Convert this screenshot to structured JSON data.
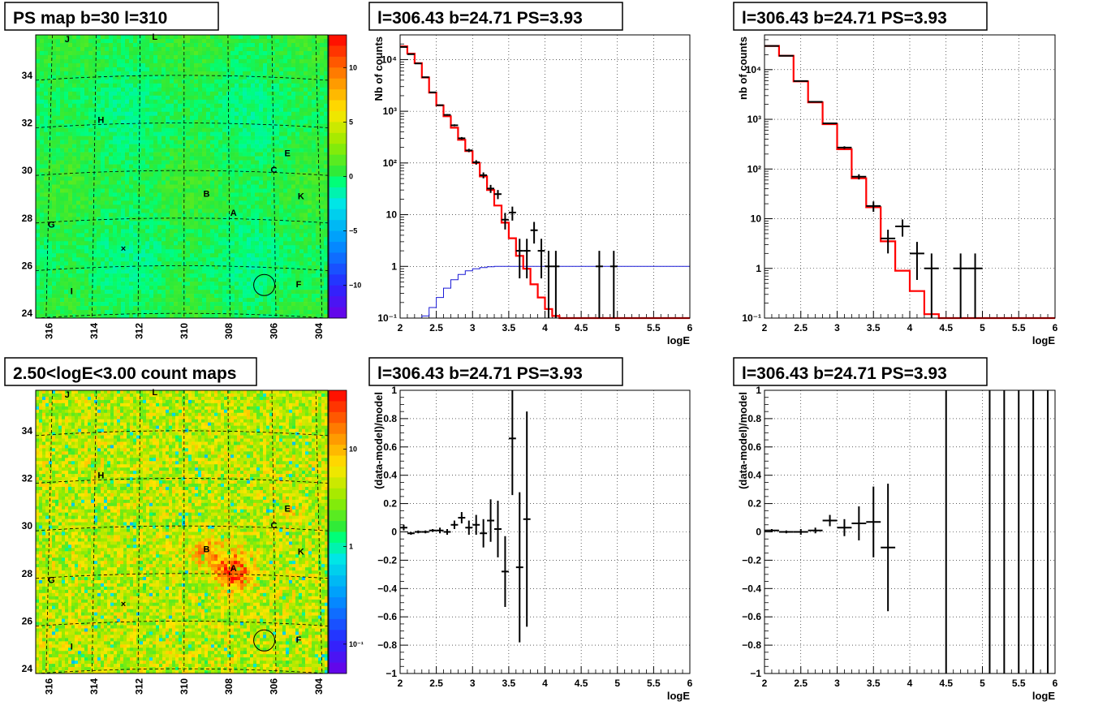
{
  "map_panels": [
    {
      "title": "PS map b=30 l=310",
      "palette": "ps",
      "colorbar_ticks": [
        "10",
        "5",
        "0",
        "−5",
        "−10"
      ],
      "colorbar_ticks_value": [
        10,
        5,
        0,
        -5,
        -10
      ],
      "colorbar_range": [
        -13,
        13
      ],
      "lat_ticks": [
        "34",
        "32",
        "30",
        "28",
        "26",
        "24"
      ],
      "lon_ticks": [
        "316",
        "314",
        "312",
        "310",
        "308",
        "306",
        "304"
      ]
    },
    {
      "title": "2.50<logE<3.00 count maps",
      "palette": "counts",
      "colorbar_ticks": [
        "10",
        "1",
        "10⁻¹"
      ],
      "colorbar_ticks_value": [
        10,
        1,
        0.1
      ],
      "colorbar_range": [
        0.05,
        40
      ],
      "lat_ticks": [
        "34",
        "32",
        "30",
        "28",
        "26",
        "24"
      ],
      "lon_ticks": [
        "316",
        "314",
        "312",
        "310",
        "308",
        "306",
        "304"
      ]
    }
  ],
  "sources": [
    {
      "label": "J",
      "l": 315.2,
      "b": 35.4
    },
    {
      "label": "L",
      "l": 311.3,
      "b": 35.5
    },
    {
      "label": "H",
      "l": 313.7,
      "b": 32.0
    },
    {
      "label": "E",
      "l": 305.4,
      "b": 30.6
    },
    {
      "label": "C",
      "l": 306.0,
      "b": 29.9
    },
    {
      "label": "B",
      "l": 309.0,
      "b": 28.9
    },
    {
      "label": "K",
      "l": 304.8,
      "b": 28.8
    },
    {
      "label": "A",
      "l": 307.8,
      "b": 28.1
    },
    {
      "label": "G",
      "l": 315.9,
      "b": 27.6
    },
    {
      "label": "I",
      "l": 315.0,
      "b": 24.8
    },
    {
      "label": "F",
      "l": 304.9,
      "b": 25.1
    }
  ],
  "target": {
    "l": 306.43,
    "b": 24.71
  },
  "cross": {
    "l": 312.7,
    "b": 26.6
  },
  "chart_data": [
    {
      "type": "line",
      "title": "l=306.43 b=24.71 PS=3.93",
      "xlabel": "logE",
      "ylabel": "Nb of counts",
      "yscale": "log",
      "xlim": [
        2,
        6
      ],
      "ylim": [
        0.1,
        30000
      ],
      "x_ticks": [
        "2",
        "2.5",
        "3",
        "3.5",
        "4",
        "4.5",
        "5",
        "5.5",
        "6"
      ],
      "y_ticks": [
        "10⁻¹",
        "1",
        "10",
        "10²",
        "10³",
        "10⁴"
      ],
      "y_ticks_value": [
        0.1,
        1,
        10,
        100,
        1000,
        10000
      ],
      "grid": true,
      "model_step": {
        "edges": [
          2.0,
          2.1,
          2.2,
          2.3,
          2.4,
          2.5,
          2.6,
          2.7,
          2.8,
          2.9,
          3.0,
          3.1,
          3.2,
          3.3,
          3.4,
          3.5,
          3.6,
          3.7,
          3.8,
          3.9,
          4.0,
          4.1,
          4.2,
          4.3,
          6.0
        ],
        "values": [
          18000,
          13000,
          8500,
          4500,
          2300,
          1300,
          800,
          480,
          280,
          170,
          100,
          55,
          30,
          15,
          7,
          3.5,
          1.6,
          0.9,
          0.45,
          0.25,
          0.15,
          0.11,
          0.1,
          0.1
        ]
      },
      "acceptance_curve": {
        "edges": [
          2.0,
          2.2,
          2.3,
          2.4,
          2.5,
          2.6,
          2.7,
          2.8,
          2.9,
          3.0,
          3.1,
          3.2,
          3.3,
          3.4,
          3.5,
          6.0
        ],
        "values": [
          0.1,
          0.1,
          0.11,
          0.16,
          0.25,
          0.38,
          0.55,
          0.7,
          0.82,
          0.9,
          0.95,
          0.98,
          1.0,
          1.0,
          1.0
        ]
      },
      "data_points": [
        {
          "x": 2.05,
          "y": 17500
        },
        {
          "x": 2.15,
          "y": 12700
        },
        {
          "x": 2.25,
          "y": 8400
        },
        {
          "x": 2.35,
          "y": 4550
        },
        {
          "x": 2.45,
          "y": 2320
        },
        {
          "x": 2.55,
          "y": 1310
        },
        {
          "x": 2.65,
          "y": 850
        },
        {
          "x": 2.75,
          "y": 535
        },
        {
          "x": 2.85,
          "y": 300
        },
        {
          "x": 2.95,
          "y": 175
        },
        {
          "x": 3.05,
          "y": 103
        },
        {
          "x": 3.15,
          "y": 58
        },
        {
          "x": 3.25,
          "y": 32
        },
        {
          "x": 3.35,
          "y": 25
        },
        {
          "x": 3.45,
          "y": 8
        },
        {
          "x": 3.55,
          "y": 11
        },
        {
          "x": 3.65,
          "y": 2
        },
        {
          "x": 3.75,
          "y": 2
        },
        {
          "x": 3.85,
          "y": 5
        },
        {
          "x": 3.95,
          "y": 2
        },
        {
          "x": 4.05,
          "y": 1
        },
        {
          "x": 4.15,
          "y": 1
        },
        {
          "x": 4.75,
          "y": 1
        },
        {
          "x": 4.95,
          "y": 1
        }
      ]
    },
    {
      "type": "line",
      "title": "l=306.43 b=24.71 PS=3.93",
      "xlabel": "logE",
      "ylabel": "nb of counts",
      "yscale": "log",
      "xlim": [
        2,
        6
      ],
      "ylim": [
        0.1,
        50000
      ],
      "x_ticks": [
        "2",
        "2.5",
        "3",
        "3.5",
        "4",
        "4.5",
        "5",
        "5.5",
        "6"
      ],
      "y_ticks": [
        "10⁻¹",
        "1",
        "10",
        "10²",
        "10³",
        "10⁴"
      ],
      "y_ticks_value": [
        0.1,
        1,
        10,
        100,
        1000,
        10000
      ],
      "grid": true,
      "model_step": {
        "edges": [
          2.0,
          2.2,
          2.4,
          2.6,
          2.8,
          3.0,
          3.2,
          3.4,
          3.6,
          3.8,
          4.0,
          4.2,
          4.4,
          6.0
        ],
        "values": [
          30000,
          19000,
          5800,
          2200,
          800,
          250,
          65,
          17,
          3.5,
          0.9,
          0.35,
          0.12,
          0.1
        ]
      },
      "data_points": [
        {
          "x": 2.1,
          "y": 30000
        },
        {
          "x": 2.3,
          "y": 19000
        },
        {
          "x": 2.5,
          "y": 5900
        },
        {
          "x": 2.7,
          "y": 2250
        },
        {
          "x": 2.9,
          "y": 830
        },
        {
          "x": 3.1,
          "y": 270
        },
        {
          "x": 3.3,
          "y": 70
        },
        {
          "x": 3.5,
          "y": 18
        },
        {
          "x": 3.7,
          "y": 4
        },
        {
          "x": 3.9,
          "y": 7
        },
        {
          "x": 4.1,
          "y": 2
        },
        {
          "x": 4.3,
          "y": 1
        },
        {
          "x": 4.7,
          "y": 1
        },
        {
          "x": 4.9,
          "y": 1
        }
      ]
    },
    {
      "type": "scatter",
      "title": "l=306.43 b=24.71 PS=3.93",
      "xlabel": "logE",
      "ylabel": "(data-model)/model",
      "xlim": [
        2,
        6
      ],
      "ylim": [
        -1,
        1
      ],
      "x_ticks": [
        "2",
        "2.5",
        "3",
        "3.5",
        "4",
        "4.5",
        "5",
        "5.5",
        "6"
      ],
      "y_ticks": [
        "−1",
        "−0.8",
        "−0.6",
        "−0.4",
        "−0.2",
        "0",
        "0.2",
        "0.4",
        "0.6",
        "0.8",
        "1"
      ],
      "y_ticks_value": [
        -1,
        -0.8,
        -0.6,
        -0.4,
        -0.2,
        0,
        0.2,
        0.4,
        0.6,
        0.8,
        1
      ],
      "grid": true,
      "bin_width": 0.1,
      "points": [
        {
          "x": 2.05,
          "y": 0.03,
          "err": 0.02
        },
        {
          "x": 2.15,
          "y": -0.01,
          "err": 0.01
        },
        {
          "x": 2.25,
          "y": 0.0,
          "err": 0.01
        },
        {
          "x": 2.35,
          "y": 0.0,
          "err": 0.01
        },
        {
          "x": 2.45,
          "y": 0.01,
          "err": 0.01
        },
        {
          "x": 2.55,
          "y": 0.01,
          "err": 0.02
        },
        {
          "x": 2.65,
          "y": 0.0,
          "err": 0.02
        },
        {
          "x": 2.75,
          "y": 0.05,
          "err": 0.03
        },
        {
          "x": 2.85,
          "y": 0.1,
          "err": 0.04
        },
        {
          "x": 2.95,
          "y": 0.03,
          "err": 0.05
        },
        {
          "x": 3.05,
          "y": 0.05,
          "err": 0.07
        },
        {
          "x": 3.15,
          "y": -0.01,
          "err": 0.1
        },
        {
          "x": 3.25,
          "y": 0.08,
          "err": 0.15
        },
        {
          "x": 3.35,
          "y": 0.02,
          "err": 0.2
        },
        {
          "x": 3.45,
          "y": -0.28,
          "err": 0.25
        },
        {
          "x": 3.55,
          "y": 0.66,
          "err": 0.4
        },
        {
          "x": 3.65,
          "y": -0.25,
          "err": 0.53
        },
        {
          "x": 3.75,
          "y": 0.09,
          "err": 0.76
        }
      ]
    },
    {
      "type": "scatter",
      "title": "l=306.43 b=24.71 PS=3.93",
      "xlabel": "logE",
      "ylabel": "(data-model)/model",
      "xlim": [
        2,
        6
      ],
      "ylim": [
        -1,
        1
      ],
      "x_ticks": [
        "2",
        "2.5",
        "3",
        "3.5",
        "4",
        "4.5",
        "5",
        "5.5",
        "6"
      ],
      "y_ticks": [
        "−1",
        "−0.8",
        "−0.6",
        "−0.4",
        "−0.2",
        "0",
        "0.2",
        "0.4",
        "0.6",
        "0.8",
        "1"
      ],
      "y_ticks_value": [
        -1,
        -0.8,
        -0.6,
        -0.4,
        -0.2,
        0,
        0.2,
        0.4,
        0.6,
        0.8,
        1
      ],
      "grid": true,
      "bin_width": 0.2,
      "points": [
        {
          "x": 2.1,
          "y": 0.01,
          "err": 0.01
        },
        {
          "x": 2.3,
          "y": 0.0,
          "err": 0.01
        },
        {
          "x": 2.5,
          "y": 0.0,
          "err": 0.02
        },
        {
          "x": 2.7,
          "y": 0.01,
          "err": 0.02
        },
        {
          "x": 2.9,
          "y": 0.08,
          "err": 0.04
        },
        {
          "x": 3.1,
          "y": 0.03,
          "err": 0.06
        },
        {
          "x": 3.3,
          "y": 0.06,
          "err": 0.12
        },
        {
          "x": 3.5,
          "y": 0.07,
          "err": 0.25
        },
        {
          "x": 3.7,
          "y": -0.11,
          "err": 0.45
        }
      ],
      "vertical_lines_x": [
        4.5,
        5.1,
        5.3,
        5.5,
        5.7,
        5.9
      ]
    }
  ]
}
